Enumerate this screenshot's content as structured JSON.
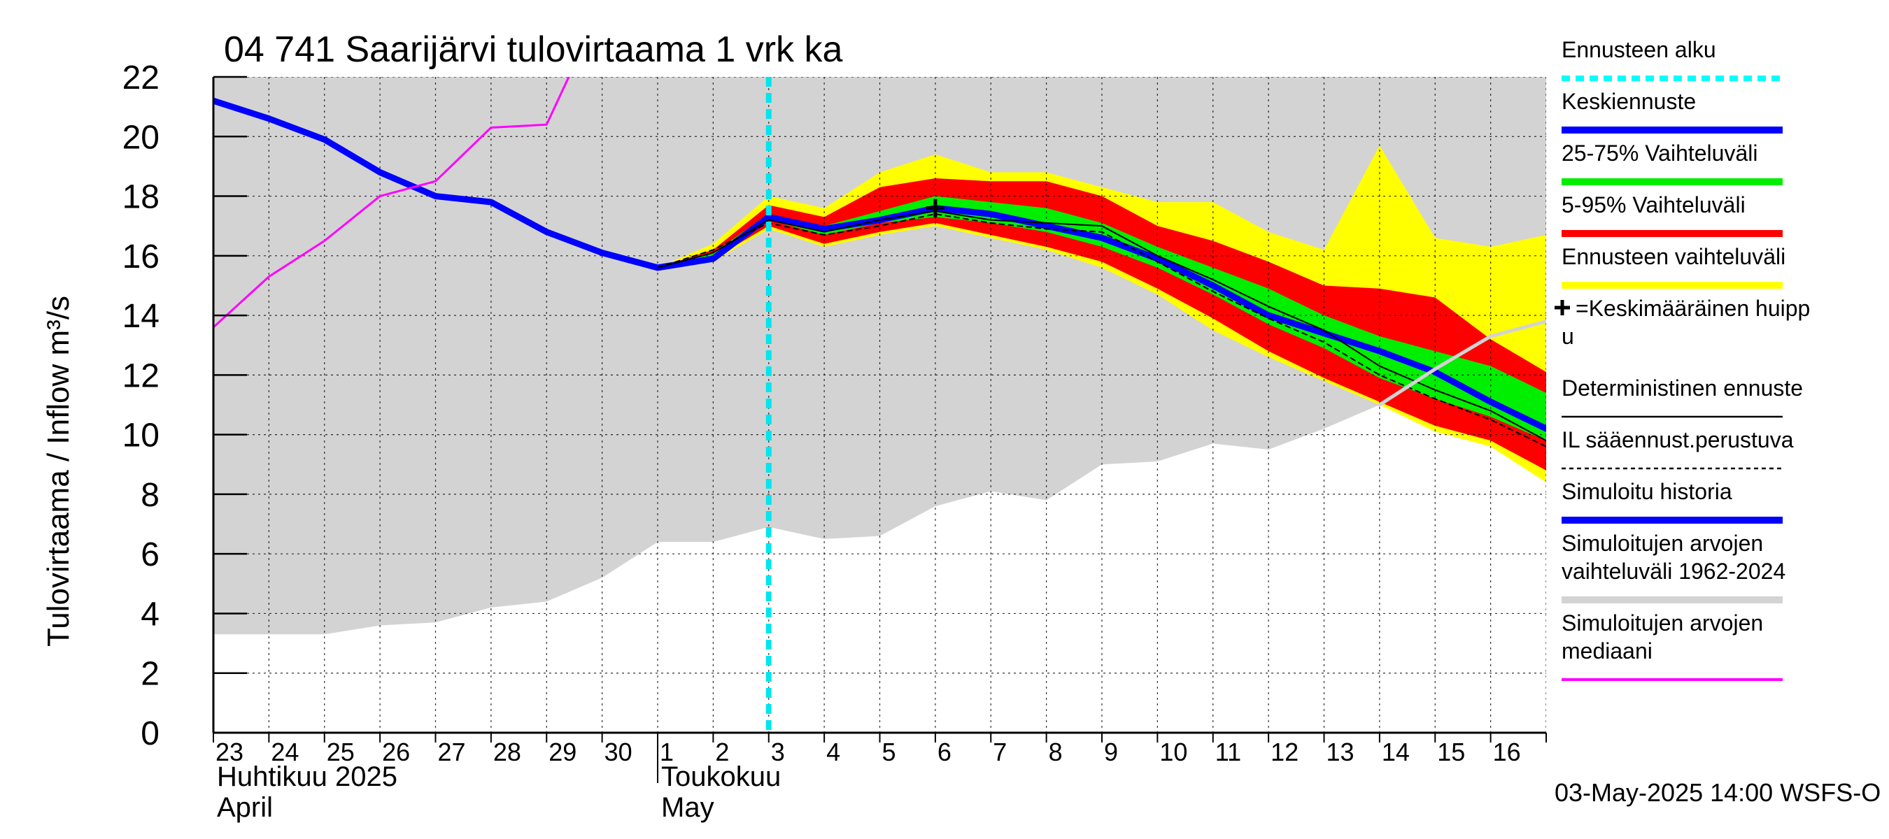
{
  "chart_data": {
    "type": "line",
    "title": "04 741 Saarijärvi tulovirtaama 1 vrk ka",
    "ylabel": "Tulovirtaama / Inflow    m³/s",
    "ylim": [
      0,
      22
    ],
    "yticks": [
      0,
      2,
      4,
      6,
      8,
      10,
      12,
      14,
      16,
      18,
      20,
      22
    ],
    "xlim": [
      0,
      24
    ],
    "x_tick_labels": [
      "23",
      "24",
      "25",
      "26",
      "27",
      "28",
      "29",
      "30",
      "1",
      "2",
      "3",
      "4",
      "5",
      "6",
      "7",
      "8",
      "9",
      "10",
      "11",
      "12",
      "13",
      "14",
      "15",
      "16"
    ],
    "month_labels": [
      {
        "x": 0,
        "fi": "Huhtikuu  2025",
        "en": "April"
      },
      {
        "x": 8,
        "fi": "Toukokuu",
        "en": "May"
      }
    ],
    "footer": "03-May-2025 14:00 WSFS-O",
    "forecast_start_x": 10.0,
    "grid": true,
    "legend_position": "right",
    "series": [
      {
        "name": "Simuloitujen arvojen vaihteluväli 1962-2024",
        "kind": "band",
        "color": "#d3d3d3",
        "x": [
          0,
          1,
          2,
          3,
          4,
          5,
          6,
          7,
          8,
          9,
          10,
          11,
          12,
          13,
          14,
          15,
          16,
          17,
          18,
          19,
          20,
          21,
          22,
          23,
          24
        ],
        "low": [
          3.3,
          3.3,
          3.3,
          3.6,
          3.7,
          4.2,
          4.4,
          5.2,
          6.4,
          6.4,
          6.9,
          6.5,
          6.6,
          7.6,
          8.1,
          7.8,
          9.0,
          9.1,
          9.7,
          9.5,
          10.2,
          11.0,
          12.2,
          13.3,
          13.8
        ],
        "high": [
          22,
          22,
          22,
          22,
          22,
          22,
          22,
          22,
          22,
          22,
          22,
          22,
          22,
          22,
          22,
          22,
          22,
          22,
          22,
          22,
          22,
          22,
          22,
          22,
          22
        ]
      },
      {
        "name": "Ennusteen vaihteluväli",
        "kind": "band",
        "color": "#ffff00",
        "x": [
          8,
          9,
          10,
          11,
          12,
          13,
          14,
          15,
          16,
          17,
          18,
          19,
          20,
          21,
          22,
          23,
          24
        ],
        "low": [
          15.5,
          15.8,
          16.9,
          16.3,
          16.7,
          17.0,
          16.6,
          16.2,
          15.6,
          14.7,
          13.5,
          12.6,
          11.8,
          11.0,
          10.1,
          9.6,
          8.4
        ],
        "high": [
          15.6,
          16.4,
          18.0,
          17.6,
          18.8,
          19.4,
          18.8,
          18.8,
          18.3,
          17.8,
          17.8,
          16.8,
          16.2,
          19.7,
          16.6,
          16.3,
          16.7
        ]
      },
      {
        "name": "5-95% Vaihteluväli",
        "kind": "band",
        "color": "#ff0000",
        "x": [
          8,
          9,
          10,
          11,
          12,
          13,
          14,
          15,
          16,
          17,
          18,
          19,
          20,
          21,
          22,
          23,
          24
        ],
        "low": [
          15.5,
          15.9,
          17.0,
          16.4,
          16.8,
          17.1,
          16.7,
          16.3,
          15.8,
          14.9,
          13.9,
          12.8,
          11.9,
          11.1,
          10.3,
          9.8,
          8.8
        ],
        "high": [
          15.6,
          16.2,
          17.7,
          17.3,
          18.3,
          18.6,
          18.5,
          18.5,
          18.0,
          17.0,
          16.5,
          15.8,
          15.0,
          14.9,
          14.6,
          13.2,
          12.1
        ]
      },
      {
        "name": "25-75% Vaihteluväli",
        "kind": "band",
        "color": "#00ee00",
        "x": [
          8,
          9,
          10,
          11,
          12,
          13,
          14,
          15,
          16,
          17,
          18,
          19,
          20,
          21,
          22,
          23,
          24
        ],
        "low": [
          15.5,
          16.0,
          17.2,
          16.7,
          17.1,
          17.3,
          17.1,
          16.8,
          16.3,
          15.6,
          14.7,
          13.7,
          12.9,
          11.9,
          11.2,
          10.6,
          9.8
        ],
        "high": [
          15.6,
          16.1,
          17.4,
          17.0,
          17.5,
          18.0,
          17.8,
          17.6,
          17.1,
          16.3,
          15.6,
          14.9,
          14.0,
          13.3,
          12.8,
          12.3,
          11.4
        ]
      },
      {
        "name": "Simuloitu historia",
        "kind": "line",
        "color": "#0000ff",
        "width": 9,
        "x": [
          0,
          1,
          2,
          3,
          4,
          5,
          6,
          7,
          8,
          9,
          10
        ],
        "y": [
          21.2,
          20.6,
          19.9,
          18.8,
          18.0,
          17.8,
          16.8,
          16.1,
          15.6,
          15.9,
          17.3
        ]
      },
      {
        "name": "Keskiennuste",
        "kind": "line",
        "color": "#0000ff",
        "width": 9,
        "x": [
          10,
          11,
          12,
          13,
          14,
          15,
          16,
          17,
          18,
          19,
          20,
          21,
          22,
          23,
          24
        ],
        "y": [
          17.3,
          16.9,
          17.2,
          17.6,
          17.4,
          17.0,
          16.6,
          15.9,
          15.0,
          14.0,
          13.4,
          12.8,
          12.1,
          11.1,
          10.2
        ]
      },
      {
        "name": "Deterministinen ennuste",
        "kind": "line",
        "color": "#000000",
        "width": 2,
        "x": [
          8,
          9,
          10,
          11,
          12,
          13,
          14,
          15,
          16,
          17,
          18,
          19,
          20,
          21,
          22,
          23,
          24
        ],
        "y": [
          15.6,
          16.1,
          17.2,
          16.8,
          17.2,
          17.5,
          17.2,
          17.1,
          17.0,
          16.0,
          15.2,
          14.3,
          13.5,
          12.3,
          11.5,
          10.8,
          9.8
        ]
      },
      {
        "name": "IL sääennust.perustuva",
        "kind": "line",
        "color": "#000000",
        "width": 2,
        "dash": true,
        "x": [
          8,
          9,
          10,
          11,
          12,
          13,
          14,
          15,
          16,
          17,
          18,
          19,
          20,
          21,
          22,
          23,
          24
        ],
        "y": [
          15.6,
          16.2,
          17.1,
          16.7,
          17.0,
          17.4,
          17.1,
          16.9,
          16.8,
          15.8,
          14.8,
          13.9,
          13.1,
          12.0,
          11.2,
          10.5,
          9.6
        ]
      },
      {
        "name": "Simuloitujen arvojen mediaani",
        "kind": "line",
        "color": "#ff00ff",
        "width": 3,
        "x": [
          0,
          1,
          2,
          3,
          4,
          5,
          6,
          6.4
        ],
        "y": [
          13.6,
          15.3,
          16.5,
          18.0,
          18.5,
          20.3,
          20.4,
          22.0
        ]
      },
      {
        "name": "median-continuation",
        "kind": "line",
        "color": "#d3d3d3",
        "width": 5,
        "x": [
          21,
          22,
          23,
          24
        ],
        "y": [
          11.0,
          12.2,
          13.3,
          13.8
        ]
      }
    ],
    "peak_marker": {
      "x": 13.0,
      "y": 17.6,
      "label": "+=Keskimääräinen huippu"
    }
  },
  "legend": [
    {
      "label": "Ennusteen alku",
      "color": "#00ffff",
      "style": "dashed"
    },
    {
      "label": "Keskiennuste",
      "color": "#0000ff",
      "style": "thick"
    },
    {
      "label": "25-75% Vaihteluväli",
      "color": "#00ee00",
      "style": "thick"
    },
    {
      "label": "5-95% Vaihteluväli",
      "color": "#ff0000",
      "style": "thick"
    },
    {
      "label": "Ennusteen vaihteluväli",
      "color": "#ffff00",
      "style": "thick"
    },
    {
      "label": "=Keskimääräinen huipp",
      "label2": "u",
      "color": "#000000",
      "style": "plus"
    },
    {
      "label": "Deterministinen ennuste",
      "color": "#000000",
      "style": "thin"
    },
    {
      "label": "IL sääennust.perustuva",
      "color": "#000000",
      "style": "dotted"
    },
    {
      "label": "Simuloitu historia",
      "color": "#0000ff",
      "style": "thick"
    },
    {
      "label": "Simuloitujen arvojen",
      "label2": "vaihteluväli 1962-2024",
      "color": "#d3d3d3",
      "style": "thick"
    },
    {
      "label": "Simuloitujen arvojen",
      "label2": "mediaani",
      "color": "#ff00ff",
      "style": "thin-color"
    }
  ]
}
